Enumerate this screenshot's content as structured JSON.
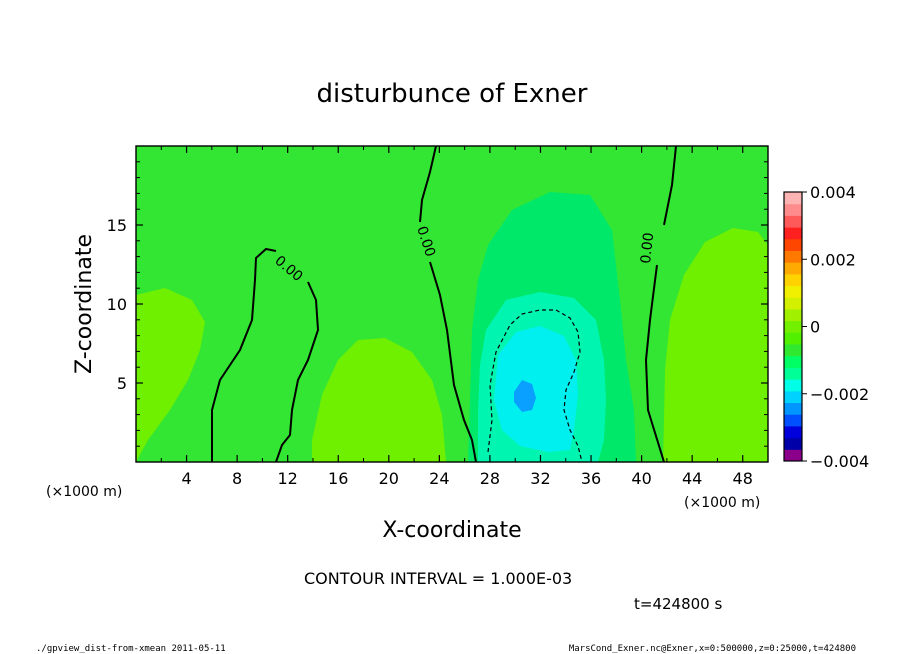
{
  "chart_data": {
    "type": "heatmap",
    "title": "disturbunce of Exner",
    "xlabel": "X-coordinate",
    "ylabel": "Z-coordinate",
    "x_unit": "(×1000 m)",
    "y_unit": "(×1000 m)",
    "xlim": [
      0,
      50
    ],
    "ylim": [
      0,
      20
    ],
    "x_ticks": [
      4,
      8,
      12,
      16,
      20,
      24,
      28,
      32,
      36,
      40,
      44,
      48
    ],
    "y_ticks": [
      5,
      10,
      15
    ],
    "contour_interval_text": "CONTOUR INTERVAL = 1.000E-03",
    "time_text": "t=424800 s",
    "contour_label": "0.00",
    "colorbar": {
      "min": -0.004,
      "max": 0.004,
      "tick_labels": [
        "0.004",
        "0.002",
        "0",
        "-0.002",
        "-0.004"
      ],
      "colors": [
        "#8a008a",
        "#0000a8",
        "#0000dc",
        "#0050ff",
        "#0096ff",
        "#00d2ff",
        "#00ffe6",
        "#00ff96",
        "#00ff64",
        "#2fe82f",
        "#50f000",
        "#73f000",
        "#a0f000",
        "#d2f000",
        "#f0f000",
        "#ffd200",
        "#ffaa00",
        "#ff7800",
        "#ff4600",
        "#ff2020",
        "#ff5a5a",
        "#ff8c8c",
        "#ffb4b4"
      ]
    },
    "regions": [
      {
        "name": "background",
        "value": 0.0,
        "color": "#33e633"
      },
      {
        "name": "left-positive",
        "value": 0.0005,
        "color": "#6ef000"
      },
      {
        "name": "center-left-positive",
        "value": 0.0005,
        "color": "#6ef000"
      },
      {
        "name": "right-positive",
        "value": 0.0005,
        "color": "#6ef000"
      },
      {
        "name": "negative-outer",
        "value": -0.0005,
        "color": "#00e86a"
      },
      {
        "name": "negative-mid",
        "value": -0.001,
        "color": "#00f5b0"
      },
      {
        "name": "negative-inner",
        "value": -0.0015,
        "color": "#00f0f0"
      },
      {
        "name": "negative-core",
        "value": -0.0022,
        "color": "#0aa0ff"
      }
    ]
  },
  "footer": {
    "left": "./gpview_dist-from-xmean 2011-05-11",
    "right": "MarsCond_Exner.nc@Exner,x=0:500000,z=0:25000,t=424800"
  }
}
